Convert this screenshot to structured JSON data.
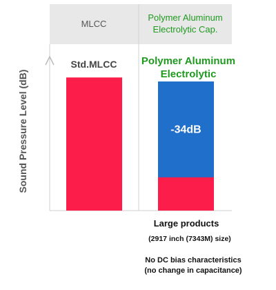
{
  "chart_data": {
    "type": "bar",
    "title": "",
    "ylabel": "Sound Pressure Level (dB)",
    "xlabel": "",
    "column_headers": [
      "MLCC",
      "Polymer Aluminum Electrolytic Cap."
    ],
    "categories": [
      "Std.MLCC",
      "Polymer Aluminum Electrolytic"
    ],
    "values": [
      1.0,
      0.25
    ],
    "reduction_bar_top": 0.97,
    "annotations": [
      "-34dB"
    ],
    "ylim": [
      0,
      1.25
    ],
    "y_ticks_shown": false,
    "grid": false,
    "colors": {
      "level": "#fc1d4a",
      "reduction": "#1f6fcb",
      "header_band": "#e8e8e8",
      "green_text": "#1f9a1f"
    }
  },
  "notes": {
    "size_title": "Large products",
    "size_detail": "(2917 inch (7343M) size)",
    "bias_line1": "No DC bias characteristics",
    "bias_line2": "(no change in capacitance)"
  },
  "icons": [
    "mlcc-chip-icon",
    "polymer-capacitor-icon"
  ]
}
